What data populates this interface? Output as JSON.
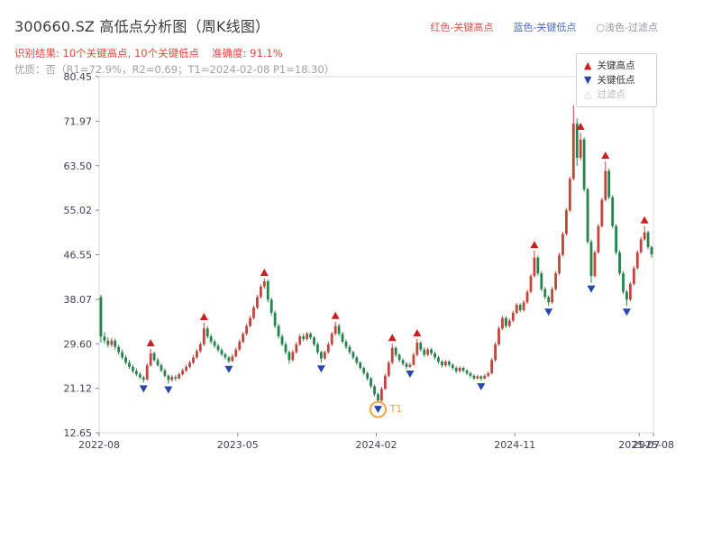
{
  "header": {
    "title": "300660.SZ 高低点分析图（周K线图）",
    "legend_inline": [
      {
        "label": "红色-关键高点",
        "color": "#d9544d"
      },
      {
        "label": "蓝色-关键低点",
        "color": "#4c6ebf"
      },
      {
        "label": "○浅色-过滤点",
        "color": "#8f959d"
      }
    ],
    "result_part1": "识别结果: 10个关键高点, 10个关键低点",
    "result_part2": "准确度: 91.1%",
    "quality_line": "优质：否（R1=72.9%，R2=0.69；T1=2024-02-08 P1=18.30）"
  },
  "legend_box": {
    "items": [
      {
        "symbol": "▲",
        "label": "关键高点",
        "symbol_color": "#cc1f1f",
        "label_color": "#333333"
      },
      {
        "symbol": "▼",
        "label": "关键低点",
        "symbol_color": "#2747b0",
        "label_color": "#333333"
      },
      {
        "symbol": "△",
        "label": "过滤点",
        "symbol_color": "#c8cdd4",
        "label_color": "#b3b8bf"
      }
    ]
  },
  "chart_data": {
    "type": "candlestick",
    "symbol": "300660.SZ",
    "interval": "weekly",
    "title": "300660.SZ 高低点分析图（周K线图）",
    "ylim": [
      12.65,
      80.45
    ],
    "y_ticks": [
      80.45,
      71.97,
      63.5,
      55.02,
      46.55,
      38.07,
      29.6,
      21.12,
      12.65
    ],
    "x_ticks": [
      {
        "label": "2022-08",
        "pos": 0
      },
      {
        "label": "2023-05",
        "pos": 39
      },
      {
        "label": "2024-02",
        "pos": 78
      },
      {
        "label": "2024-11",
        "pos": 117
      },
      {
        "label": "2025-07",
        "pos": 152
      },
      {
        "label": "2025-08",
        "pos": 156
      }
    ],
    "colors": {
      "up": "#c0453c",
      "down": "#27824d",
      "high_marker": "#cc1f1f",
      "low_marker": "#2747b0",
      "filtered": "#d0d4da",
      "annotation": "#f2a33c"
    },
    "candles": [
      [
        38.5,
        38.9,
        29.8,
        31.0
      ],
      [
        31.0,
        31.8,
        29.6,
        30.2
      ],
      [
        30.2,
        30.8,
        28.9,
        29.4
      ],
      [
        29.4,
        30.7,
        29.0,
        30.2
      ],
      [
        30.2,
        30.6,
        28.5,
        29.0
      ],
      [
        29.0,
        29.4,
        27.5,
        28.0
      ],
      [
        28.0,
        28.5,
        26.6,
        27.0
      ],
      [
        27.0,
        27.4,
        25.6,
        26.0
      ],
      [
        26.0,
        26.5,
        24.8,
        25.2
      ],
      [
        25.2,
        25.6,
        24.0,
        24.4
      ],
      [
        24.4,
        24.9,
        23.4,
        23.8
      ],
      [
        23.8,
        24.2,
        22.9,
        23.2
      ],
      [
        23.2,
        23.5,
        22.2,
        22.8
      ],
      [
        22.8,
        25.9,
        22.6,
        25.5
      ],
      [
        25.5,
        28.6,
        25.2,
        27.8
      ],
      [
        27.8,
        28.1,
        26.2,
        26.5
      ],
      [
        26.5,
        26.9,
        25.2,
        25.5
      ],
      [
        25.5,
        25.9,
        24.2,
        24.5
      ],
      [
        24.5,
        24.9,
        23.2,
        23.5
      ],
      [
        23.5,
        23.8,
        22.0,
        22.7
      ],
      [
        22.7,
        23.7,
        22.4,
        23.3
      ],
      [
        23.3,
        23.6,
        22.6,
        23.0
      ],
      [
        23.0,
        24.1,
        22.8,
        23.8
      ],
      [
        23.8,
        24.9,
        23.5,
        24.5
      ],
      [
        24.5,
        25.6,
        24.2,
        25.2
      ],
      [
        25.2,
        26.4,
        24.9,
        26.0
      ],
      [
        26.0,
        27.4,
        25.7,
        27.0
      ],
      [
        27.0,
        28.6,
        26.7,
        28.2
      ],
      [
        28.2,
        29.9,
        27.9,
        29.5
      ],
      [
        29.5,
        33.6,
        29.2,
        32.5
      ],
      [
        32.5,
        32.9,
        30.6,
        31.0
      ],
      [
        31.0,
        31.4,
        29.6,
        30.0
      ],
      [
        30.0,
        30.4,
        28.8,
        29.2
      ],
      [
        29.2,
        29.6,
        28.0,
        28.4
      ],
      [
        28.4,
        28.8,
        27.2,
        27.6
      ],
      [
        27.6,
        27.9,
        26.6,
        27.0
      ],
      [
        27.0,
        27.3,
        25.9,
        26.3
      ],
      [
        26.3,
        27.6,
        26.1,
        27.2
      ],
      [
        27.2,
        28.9,
        27.0,
        28.5
      ],
      [
        28.5,
        30.4,
        28.2,
        30.0
      ],
      [
        30.0,
        31.9,
        29.7,
        31.5
      ],
      [
        31.5,
        33.4,
        31.2,
        33.0
      ],
      [
        33.0,
        34.9,
        32.7,
        34.5
      ],
      [
        34.5,
        36.9,
        34.2,
        36.5
      ],
      [
        36.5,
        38.9,
        36.2,
        38.5
      ],
      [
        38.5,
        40.9,
        38.2,
        40.5
      ],
      [
        40.5,
        42.0,
        40.1,
        41.5
      ],
      [
        41.5,
        41.8,
        37.5,
        38.0
      ],
      [
        38.0,
        38.4,
        35.0,
        35.5
      ],
      [
        35.5,
        35.9,
        32.6,
        33.0
      ],
      [
        33.0,
        33.4,
        30.6,
        31.0
      ],
      [
        31.0,
        31.4,
        29.1,
        29.5
      ],
      [
        29.5,
        29.9,
        27.6,
        28.0
      ],
      [
        28.0,
        28.3,
        25.8,
        26.5
      ],
      [
        26.5,
        28.4,
        26.2,
        28.0
      ],
      [
        28.0,
        29.9,
        27.7,
        29.5
      ],
      [
        29.5,
        31.4,
        29.2,
        31.0
      ],
      [
        31.0,
        31.5,
        30.1,
        30.5
      ],
      [
        30.5,
        31.9,
        30.2,
        31.5
      ],
      [
        31.5,
        31.8,
        30.4,
        30.8
      ],
      [
        30.8,
        31.1,
        29.1,
        29.5
      ],
      [
        29.5,
        29.9,
        27.6,
        28.0
      ],
      [
        28.0,
        28.3,
        26.0,
        26.8
      ],
      [
        26.8,
        28.3,
        26.5,
        28.0
      ],
      [
        28.0,
        29.9,
        27.7,
        29.5
      ],
      [
        29.5,
        31.9,
        29.2,
        31.5
      ],
      [
        31.5,
        33.8,
        31.2,
        33.0
      ],
      [
        33.0,
        33.4,
        31.1,
        31.5
      ],
      [
        31.5,
        31.9,
        29.6,
        30.0
      ],
      [
        30.0,
        30.4,
        28.6,
        29.0
      ],
      [
        29.0,
        29.4,
        27.6,
        28.0
      ],
      [
        28.0,
        28.3,
        26.6,
        27.0
      ],
      [
        27.0,
        27.3,
        25.6,
        26.0
      ],
      [
        26.0,
        26.3,
        24.6,
        25.0
      ],
      [
        25.0,
        25.3,
        23.6,
        24.0
      ],
      [
        24.0,
        24.3,
        22.6,
        23.0
      ],
      [
        23.0,
        23.3,
        21.1,
        21.5
      ],
      [
        21.5,
        21.8,
        19.6,
        20.0
      ],
      [
        20.0,
        20.3,
        18.3,
        18.8
      ],
      [
        18.8,
        21.4,
        18.6,
        21.0
      ],
      [
        21.0,
        23.9,
        20.8,
        23.5
      ],
      [
        23.5,
        26.4,
        23.2,
        26.0
      ],
      [
        26.0,
        29.6,
        25.7,
        28.8
      ],
      [
        28.8,
        29.1,
        27.1,
        27.5
      ],
      [
        27.5,
        27.8,
        26.1,
        26.5
      ],
      [
        26.5,
        26.8,
        25.4,
        25.8
      ],
      [
        25.8,
        26.1,
        24.8,
        25.2
      ],
      [
        25.2,
        26.0,
        25.0,
        25.6
      ],
      [
        25.6,
        27.9,
        25.4,
        27.5
      ],
      [
        27.5,
        30.5,
        27.2,
        29.8
      ],
      [
        29.8,
        30.1,
        28.1,
        28.5
      ],
      [
        28.5,
        28.9,
        27.1,
        27.5
      ],
      [
        27.5,
        28.9,
        27.2,
        28.5
      ],
      [
        28.5,
        28.8,
        27.4,
        27.8
      ],
      [
        27.8,
        28.1,
        26.6,
        27.0
      ],
      [
        27.0,
        27.3,
        25.8,
        26.2
      ],
      [
        26.2,
        26.5,
        25.1,
        25.5
      ],
      [
        25.5,
        26.5,
        25.2,
        26.2
      ],
      [
        26.2,
        26.5,
        25.2,
        25.6
      ],
      [
        25.6,
        25.9,
        24.6,
        25.0
      ],
      [
        25.0,
        25.3,
        24.0,
        24.4
      ],
      [
        24.4,
        25.3,
        24.1,
        25.0
      ],
      [
        25.0,
        25.3,
        24.1,
        24.5
      ],
      [
        24.5,
        24.8,
        23.6,
        24.0
      ],
      [
        24.0,
        24.3,
        23.1,
        23.5
      ],
      [
        23.5,
        23.8,
        22.7,
        23.0
      ],
      [
        23.0,
        23.7,
        22.8,
        23.4
      ],
      [
        23.4,
        23.6,
        22.6,
        23.0
      ],
      [
        23.0,
        23.8,
        22.8,
        23.5
      ],
      [
        23.5,
        24.3,
        23.2,
        24.0
      ],
      [
        24.0,
        26.9,
        23.8,
        26.5
      ],
      [
        26.5,
        29.9,
        26.2,
        29.5
      ],
      [
        29.5,
        32.9,
        29.2,
        32.5
      ],
      [
        32.5,
        34.9,
        32.2,
        34.5
      ],
      [
        34.5,
        34.8,
        32.6,
        33.0
      ],
      [
        33.0,
        34.4,
        32.7,
        34.0
      ],
      [
        34.0,
        35.9,
        33.7,
        35.5
      ],
      [
        35.5,
        37.4,
        35.2,
        37.0
      ],
      [
        37.0,
        37.3,
        35.6,
        36.0
      ],
      [
        36.0,
        37.9,
        35.7,
        37.5
      ],
      [
        37.5,
        39.9,
        37.2,
        39.5
      ],
      [
        39.5,
        42.9,
        39.2,
        42.5
      ],
      [
        42.5,
        47.3,
        42.2,
        46.0
      ],
      [
        46.0,
        46.4,
        42.6,
        43.0
      ],
      [
        43.0,
        43.4,
        39.6,
        40.0
      ],
      [
        40.0,
        40.4,
        38.1,
        38.5
      ],
      [
        38.5,
        38.8,
        36.8,
        37.5
      ],
      [
        37.5,
        40.4,
        37.2,
        40.0
      ],
      [
        40.0,
        43.4,
        39.7,
        43.0
      ],
      [
        43.0,
        46.9,
        42.7,
        46.5
      ],
      [
        46.5,
        50.9,
        46.2,
        50.5
      ],
      [
        50.5,
        55.4,
        50.2,
        55.0
      ],
      [
        55.0,
        61.4,
        54.7,
        61.0
      ],
      [
        61.0,
        75.0,
        60.7,
        71.5
      ],
      [
        71.5,
        72.5,
        63.5,
        65.0
      ],
      [
        65.0,
        69.8,
        64.5,
        68.5
      ],
      [
        68.5,
        68.9,
        58.6,
        59.0
      ],
      [
        59.0,
        59.4,
        48.6,
        49.0
      ],
      [
        49.0,
        49.4,
        41.2,
        42.5
      ],
      [
        42.5,
        47.4,
        42.2,
        47.0
      ],
      [
        47.0,
        52.4,
        46.7,
        52.0
      ],
      [
        52.0,
        57.4,
        51.7,
        57.0
      ],
      [
        57.0,
        64.3,
        56.7,
        62.5
      ],
      [
        62.5,
        62.9,
        57.1,
        57.5
      ],
      [
        57.5,
        57.9,
        51.6,
        52.0
      ],
      [
        52.0,
        52.4,
        46.6,
        47.0
      ],
      [
        47.0,
        47.4,
        42.6,
        43.0
      ],
      [
        43.0,
        43.4,
        39.1,
        39.5
      ],
      [
        39.5,
        39.8,
        36.8,
        38.0
      ],
      [
        38.0,
        41.4,
        37.7,
        41.0
      ],
      [
        41.0,
        44.4,
        40.7,
        44.0
      ],
      [
        44.0,
        47.4,
        43.7,
        47.0
      ],
      [
        47.0,
        49.9,
        46.7,
        49.5
      ],
      [
        49.5,
        52.0,
        49.2,
        50.8
      ],
      [
        50.8,
        51.1,
        47.6,
        48.0
      ],
      [
        48.0,
        48.3,
        46.0,
        46.6
      ]
    ],
    "key_highs": [
      {
        "week": 14,
        "value": 28.6
      },
      {
        "week": 29,
        "value": 33.6
      },
      {
        "week": 46,
        "value": 42.0
      },
      {
        "week": 66,
        "value": 33.8
      },
      {
        "week": 82,
        "value": 29.6
      },
      {
        "week": 89,
        "value": 30.5
      },
      {
        "week": 122,
        "value": 47.3
      },
      {
        "week": 135,
        "value": 69.8
      },
      {
        "week": 142,
        "value": 64.3
      },
      {
        "week": 153,
        "value": 52.0
      }
    ],
    "key_lows": [
      {
        "week": 12,
        "value": 22.2
      },
      {
        "week": 19,
        "value": 22.0
      },
      {
        "week": 36,
        "value": 25.9
      },
      {
        "week": 62,
        "value": 26.0
      },
      {
        "week": 78,
        "value": 18.3,
        "annotation": "T1"
      },
      {
        "week": 87,
        "value": 25.0
      },
      {
        "week": 107,
        "value": 22.6
      },
      {
        "week": 126,
        "value": 36.8
      },
      {
        "week": 138,
        "value": 41.2
      },
      {
        "week": 148,
        "value": 36.8
      }
    ]
  }
}
